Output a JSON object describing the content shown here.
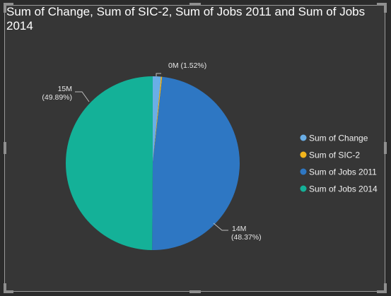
{
  "visual": {
    "title": "Sum of Change, Sum of SIC-2, Sum of Jobs 2011 and Sum of Jobs 2014"
  },
  "chart_data": {
    "type": "pie",
    "title": "Sum of Change, Sum of SIC-2, Sum of Jobs 2011 and Sum of Jobs 2014",
    "slices": [
      {
        "name": "Sum of Change",
        "percent": 1.52,
        "label": "0M",
        "label_pct": "(1.52%)",
        "color": "#6aaee6"
      },
      {
        "name": "Sum of SIC-2",
        "percent": 0.22,
        "label": "",
        "label_pct": "",
        "color": "#f2b51c"
      },
      {
        "name": "Sum of Jobs 2011",
        "percent": 48.37,
        "label": "14M",
        "label_pct": "(48.37%)",
        "color": "#2e77c3"
      },
      {
        "name": "Sum of Jobs 2014",
        "percent": 49.89,
        "label": "15M",
        "label_pct": "(49.89%)",
        "color": "#14b198"
      }
    ],
    "legend": [
      "Sum of Change",
      "Sum of SIC-2",
      "Sum of Jobs 2011",
      "Sum of Jobs 2014"
    ],
    "legend_position": "right",
    "start_angle": "top, clockwise"
  }
}
